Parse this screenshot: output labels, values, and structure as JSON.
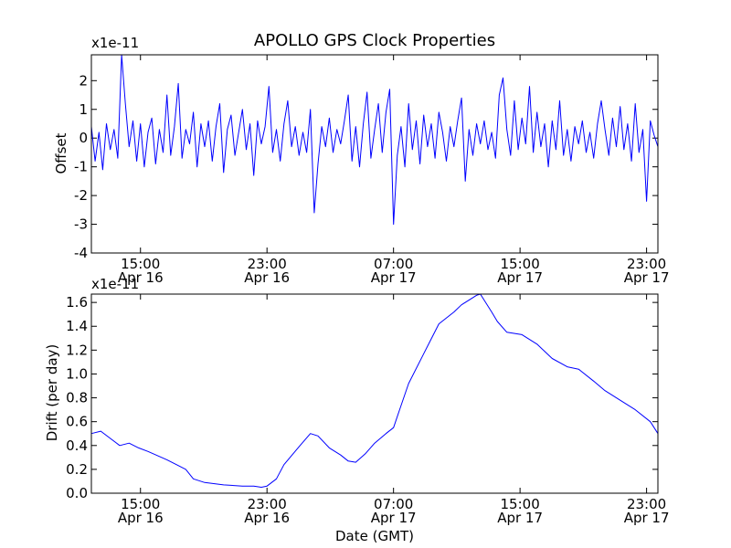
{
  "figure": {
    "title": "APOLLO GPS Clock Properties"
  },
  "chart_data": [
    {
      "type": "line",
      "name": "offset",
      "title": "APOLLO GPS Clock Properties",
      "ylabel": "Offset",
      "xlabel": "",
      "scale_label": "x1e-11",
      "ylim": [
        -4,
        2.9
      ],
      "xlim_hours": [
        0,
        15.0
      ],
      "yticks": [
        -4,
        -3,
        -2,
        -1,
        0,
        1,
        2
      ],
      "ytick_labels": [
        "-4",
        "-3",
        "-2",
        "-1",
        "0",
        "1",
        "2"
      ],
      "xticks": [
        {
          "hour": 1.3,
          "time": "15:00",
          "date": "Apr 16"
        },
        {
          "hour": 4.65,
          "time": "23:00",
          "date": "Apr 16"
        },
        {
          "hour": 8.0,
          "time": "07:00",
          "date": "Apr 17"
        },
        {
          "hour": 11.35,
          "time": "15:00",
          "date": "Apr 17"
        },
        {
          "hour": 14.7,
          "time": "23:00",
          "date": "Apr 17"
        }
      ],
      "color": "#0000ff",
      "note": "dense noisy series; values approximated (x = hours from start, y in units of 1e-11)",
      "series": [
        {
          "name": "offset",
          "x": [
            0,
            0.1,
            0.2,
            0.3,
            0.4,
            0.5,
            0.6,
            0.7,
            0.8,
            0.9,
            1.0,
            1.1,
            1.2,
            1.3,
            1.4,
            1.5,
            1.6,
            1.7,
            1.8,
            1.9,
            2.0,
            2.1,
            2.2,
            2.3,
            2.4,
            2.5,
            2.6,
            2.7,
            2.8,
            2.9,
            3.0,
            3.1,
            3.2,
            3.3,
            3.4,
            3.5,
            3.6,
            3.7,
            3.8,
            3.9,
            4.0,
            4.1,
            4.2,
            4.3,
            4.4,
            4.5,
            4.6,
            4.7,
            4.8,
            4.9,
            5.0,
            5.1,
            5.2,
            5.3,
            5.4,
            5.5,
            5.6,
            5.7,
            5.8,
            5.9,
            6.0,
            6.1,
            6.2,
            6.3,
            6.4,
            6.5,
            6.6,
            6.7,
            6.8,
            6.9,
            7.0,
            7.1,
            7.2,
            7.3,
            7.4,
            7.5,
            7.6,
            7.7,
            7.8,
            7.9,
            8.0,
            8.1,
            8.2,
            8.3,
            8.4,
            8.5,
            8.6,
            8.7,
            8.8,
            8.9,
            9.0,
            9.1,
            9.2,
            9.3,
            9.4,
            9.5,
            9.6,
            9.7,
            9.8,
            9.9,
            10.0,
            10.1,
            10.2,
            10.3,
            10.4,
            10.5,
            10.6,
            10.7,
            10.8,
            10.9,
            11.0,
            11.1,
            11.2,
            11.3,
            11.4,
            11.5,
            11.6,
            11.7,
            11.8,
            11.9,
            12.0,
            12.1,
            12.2,
            12.3,
            12.4,
            12.5,
            12.6,
            12.7,
            12.8,
            12.9,
            13.0,
            13.1,
            13.2,
            13.3,
            13.4,
            13.5,
            13.6,
            13.7,
            13.8,
            13.9,
            14.0,
            14.1,
            14.2,
            14.3,
            14.4,
            14.5,
            14.6,
            14.7,
            14.8,
            14.9,
            15.0
          ],
          "y": [
            0.4,
            -0.8,
            0.2,
            -1.1,
            0.5,
            -0.4,
            0.3,
            -0.7,
            2.9,
            1.2,
            -0.3,
            0.6,
            -0.8,
            0.5,
            -1.0,
            0.2,
            0.7,
            -0.9,
            0.3,
            -0.5,
            1.5,
            -0.6,
            0.4,
            1.9,
            -0.7,
            0.3,
            -0.2,
            0.9,
            -1.0,
            0.5,
            -0.3,
            0.6,
            -0.8,
            0.4,
            1.2,
            -1.2,
            0.3,
            0.8,
            -0.6,
            0.2,
            1.0,
            -0.4,
            0.5,
            -1.3,
            0.6,
            -0.2,
            0.4,
            1.8,
            -0.5,
            0.3,
            -0.8,
            0.5,
            1.3,
            -0.3,
            0.4,
            -0.6,
            0.2,
            -0.5,
            1.0,
            -2.6,
            -0.9,
            0.4,
            -0.3,
            0.7,
            -0.5,
            0.3,
            -0.2,
            0.6,
            1.5,
            -0.8,
            0.4,
            -1.0,
            0.5,
            1.6,
            -0.7,
            0.3,
            1.2,
            -0.5,
            0.9,
            1.7,
            -3.0,
            -0.6,
            0.4,
            -1.0,
            1.2,
            -0.4,
            0.6,
            -0.9,
            0.8,
            -0.3,
            0.5,
            -0.7,
            0.9,
            0.2,
            -0.8,
            0.4,
            -0.3,
            0.6,
            1.4,
            -1.5,
            0.3,
            -0.6,
            0.5,
            -0.2,
            0.6,
            -0.4,
            0.2,
            -0.7,
            1.5,
            2.1,
            0.3,
            -0.6,
            1.3,
            -0.4,
            0.7,
            -0.2,
            1.8,
            -0.5,
            0.9,
            -0.3,
            0.5,
            -1.0,
            0.6,
            -0.4,
            1.3,
            -0.6,
            0.3,
            -0.8,
            0.4,
            -0.2,
            0.6,
            -0.5,
            0.2,
            -0.7,
            0.5,
            1.3,
            0.3,
            -0.6,
            0.7,
            -0.3,
            1.1,
            -0.4,
            0.5,
            -0.8,
            1.2,
            -0.5,
            0.3,
            -2.2,
            0.6,
            0.1,
            -0.3
          ]
        }
      ]
    },
    {
      "type": "line",
      "name": "drift",
      "title": "",
      "ylabel": "Drift (per day)",
      "xlabel": "Date (GMT)",
      "scale_label": "x1e-11",
      "ylim": [
        0.0,
        1.67
      ],
      "xlim_hours": [
        0,
        15.0
      ],
      "yticks": [
        0.0,
        0.2,
        0.4,
        0.6,
        0.8,
        1.0,
        1.2,
        1.4,
        1.6
      ],
      "ytick_labels": [
        "0.0",
        "0.2",
        "0.4",
        "0.6",
        "0.8",
        "1.0",
        "1.2",
        "1.4",
        "1.6"
      ],
      "xticks": [
        {
          "hour": 1.3,
          "time": "15:00",
          "date": "Apr 16"
        },
        {
          "hour": 4.65,
          "time": "23:00",
          "date": "Apr 16"
        },
        {
          "hour": 8.0,
          "time": "07:00",
          "date": "Apr 17"
        },
        {
          "hour": 11.35,
          "time": "15:00",
          "date": "Apr 17"
        },
        {
          "hour": 14.7,
          "time": "23:00",
          "date": "Apr 17"
        }
      ],
      "color": "#0000ff",
      "series": [
        {
          "name": "drift",
          "x": [
            0,
            0.25,
            0.5,
            0.75,
            1.0,
            1.25,
            1.5,
            2.0,
            2.5,
            2.7,
            3.0,
            3.5,
            4.0,
            4.3,
            4.5,
            4.65,
            4.9,
            5.1,
            5.5,
            5.8,
            6.0,
            6.3,
            6.6,
            6.8,
            7.0,
            7.25,
            7.5,
            7.8,
            8.0,
            8.15,
            8.4,
            8.8,
            9.2,
            9.6,
            9.8,
            10.2,
            10.3,
            10.6,
            10.75,
            11.0,
            11.4,
            11.8,
            12.2,
            12.6,
            12.9,
            13.3,
            13.6,
            14.0,
            14.4,
            14.8,
            15.0
          ],
          "y": [
            0.5,
            0.52,
            0.46,
            0.4,
            0.42,
            0.38,
            0.35,
            0.28,
            0.2,
            0.12,
            0.09,
            0.07,
            0.06,
            0.06,
            0.05,
            0.06,
            0.12,
            0.24,
            0.39,
            0.5,
            0.48,
            0.38,
            0.32,
            0.27,
            0.26,
            0.33,
            0.42,
            0.5,
            0.55,
            0.69,
            0.92,
            1.17,
            1.42,
            1.52,
            1.58,
            1.66,
            1.67,
            1.52,
            1.44,
            1.35,
            1.33,
            1.25,
            1.13,
            1.06,
            1.04,
            0.94,
            0.86,
            0.78,
            0.7,
            0.6,
            0.5
          ]
        }
      ]
    }
  ]
}
